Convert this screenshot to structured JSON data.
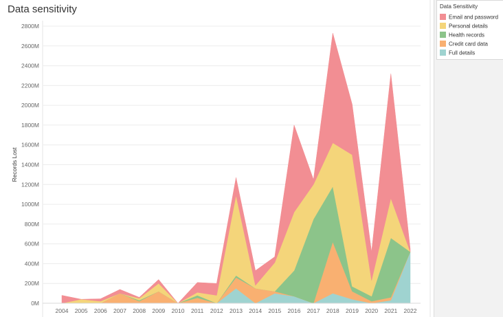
{
  "title": "Data sensitivity",
  "legend": {
    "title": "Data Sensitivity",
    "items": [
      {
        "label": "Email and password",
        "color": "#f28e93"
      },
      {
        "label": "Personal details",
        "color": "#f4d57a"
      },
      {
        "label": "Health records",
        "color": "#8cc48a"
      },
      {
        "label": "Credit card data",
        "color": "#f9b071"
      },
      {
        "label": "Full details",
        "color": "#9fd3d0"
      }
    ]
  },
  "chart_data": {
    "type": "area",
    "stacked": true,
    "ylabel": "Records Lost",
    "xlabel": "",
    "ylim": [
      0,
      2800
    ],
    "yticks": [
      0,
      200,
      400,
      600,
      800,
      1000,
      1200,
      1400,
      1600,
      1800,
      2000,
      2200,
      2400,
      2600,
      2800
    ],
    "ytick_labels": [
      "0M",
      "200M",
      "400M",
      "600M",
      "800M",
      "1000M",
      "1200M",
      "1400M",
      "1600M",
      "1800M",
      "2000M",
      "2200M",
      "2400M",
      "2600M",
      "2800M"
    ],
    "categories": [
      "2004",
      "2005",
      "2006",
      "2007",
      "2008",
      "2009",
      "2010",
      "2011",
      "2012",
      "2013",
      "2014",
      "2015",
      "2016",
      "2017",
      "2018",
      "2019",
      "2020",
      "2021",
      "2022"
    ],
    "series": [
      {
        "name": "Full details",
        "color": "#9fd3d0",
        "values": [
          0,
          0,
          0,
          0,
          0,
          0,
          0,
          5,
          0,
          150,
          0,
          100,
          70,
          0,
          100,
          40,
          0,
          30,
          520
        ]
      },
      {
        "name": "Credit card data",
        "color": "#f9b071",
        "values": [
          0,
          0,
          0,
          100,
          20,
          120,
          0,
          50,
          0,
          110,
          150,
          20,
          0,
          0,
          520,
          80,
          20,
          30,
          0
        ]
      },
      {
        "name": "Health records",
        "color": "#8cc48a",
        "values": [
          0,
          0,
          0,
          0,
          10,
          0,
          0,
          25,
          0,
          20,
          0,
          0,
          260,
          850,
          560,
          50,
          50,
          600,
          0
        ]
      },
      {
        "name": "Personal details",
        "color": "#f4d57a",
        "values": [
          0,
          40,
          20,
          0,
          20,
          80,
          0,
          30,
          80,
          810,
          30,
          290,
          590,
          350,
          440,
          1330,
          160,
          400,
          0
        ]
      },
      {
        "name": "Email and password",
        "color": "#f28e93",
        "values": [
          80,
          0,
          25,
          40,
          10,
          40,
          0,
          100,
          120,
          180,
          150,
          60,
          880,
          50,
          1110,
          510,
          290,
          1260,
          30
        ]
      }
    ]
  }
}
